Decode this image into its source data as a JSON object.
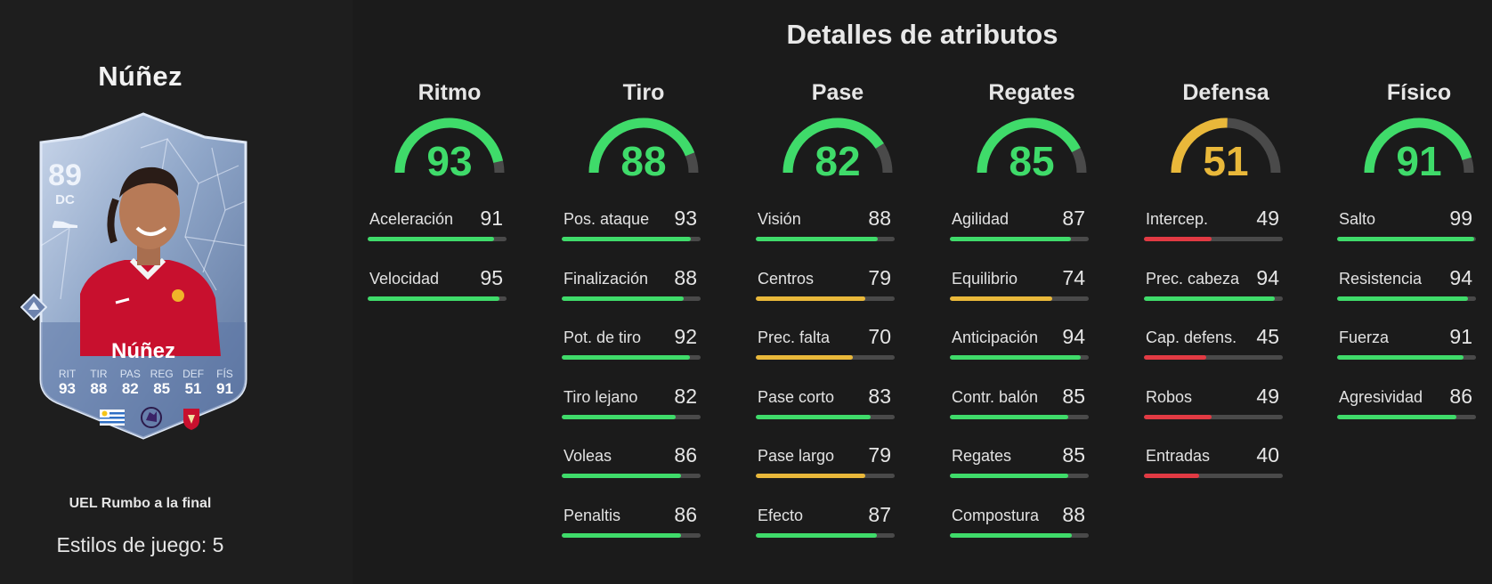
{
  "player": {
    "name": "Núñez",
    "card_name": "Núñez",
    "rating": "89",
    "position": "DC",
    "edition": "UEL Rumbo a la final",
    "playstyles": "Estilos de juego: 5",
    "face_stats": [
      {
        "label": "RIT",
        "value": "93"
      },
      {
        "label": "TIR",
        "value": "88"
      },
      {
        "label": "PAS",
        "value": "82"
      },
      {
        "label": "REG",
        "value": "85"
      },
      {
        "label": "DEF",
        "value": "51"
      },
      {
        "label": "FÍS",
        "value": "91"
      }
    ]
  },
  "panel_title": "Detalles de atributos",
  "colors": {
    "green": "#3fdb6a",
    "yellow": "#e9b83a",
    "red": "#e23a43",
    "track": "#4a4a4a"
  },
  "groups": [
    {
      "title": "Ritmo",
      "value": 93,
      "attributes": [
        {
          "label": "Aceleración",
          "value": 91
        },
        {
          "label": "Velocidad",
          "value": 95
        }
      ]
    },
    {
      "title": "Tiro",
      "value": 88,
      "attributes": [
        {
          "label": "Pos. ataque",
          "value": 93
        },
        {
          "label": "Finalización",
          "value": 88
        },
        {
          "label": "Pot. de tiro",
          "value": 92
        },
        {
          "label": "Tiro lejano",
          "value": 82
        },
        {
          "label": "Voleas",
          "value": 86
        },
        {
          "label": "Penaltis",
          "value": 86
        }
      ]
    },
    {
      "title": "Pase",
      "value": 82,
      "attributes": [
        {
          "label": "Visión",
          "value": 88
        },
        {
          "label": "Centros",
          "value": 79
        },
        {
          "label": "Prec. falta",
          "value": 70
        },
        {
          "label": "Pase corto",
          "value": 83
        },
        {
          "label": "Pase largo",
          "value": 79
        },
        {
          "label": "Efecto",
          "value": 87
        }
      ]
    },
    {
      "title": "Regates",
      "value": 85,
      "attributes": [
        {
          "label": "Agilidad",
          "value": 87
        },
        {
          "label": "Equilibrio",
          "value": 74
        },
        {
          "label": "Anticipación",
          "value": 94
        },
        {
          "label": "Contr. balón",
          "value": 85
        },
        {
          "label": "Regates",
          "value": 85
        },
        {
          "label": "Compostura",
          "value": 88
        }
      ]
    },
    {
      "title": "Defensa",
      "value": 51,
      "attributes": [
        {
          "label": "Intercep.",
          "value": 49
        },
        {
          "label": "Prec. cabeza",
          "value": 94
        },
        {
          "label": "Cap. defens.",
          "value": 45
        },
        {
          "label": "Robos",
          "value": 49
        },
        {
          "label": "Entradas",
          "value": 40
        }
      ]
    },
    {
      "title": "Físico",
      "value": 91,
      "attributes": [
        {
          "label": "Salto",
          "value": 99
        },
        {
          "label": "Resistencia",
          "value": 94
        },
        {
          "label": "Fuerza",
          "value": 91
        },
        {
          "label": "Agresividad",
          "value": 86
        }
      ]
    }
  ]
}
